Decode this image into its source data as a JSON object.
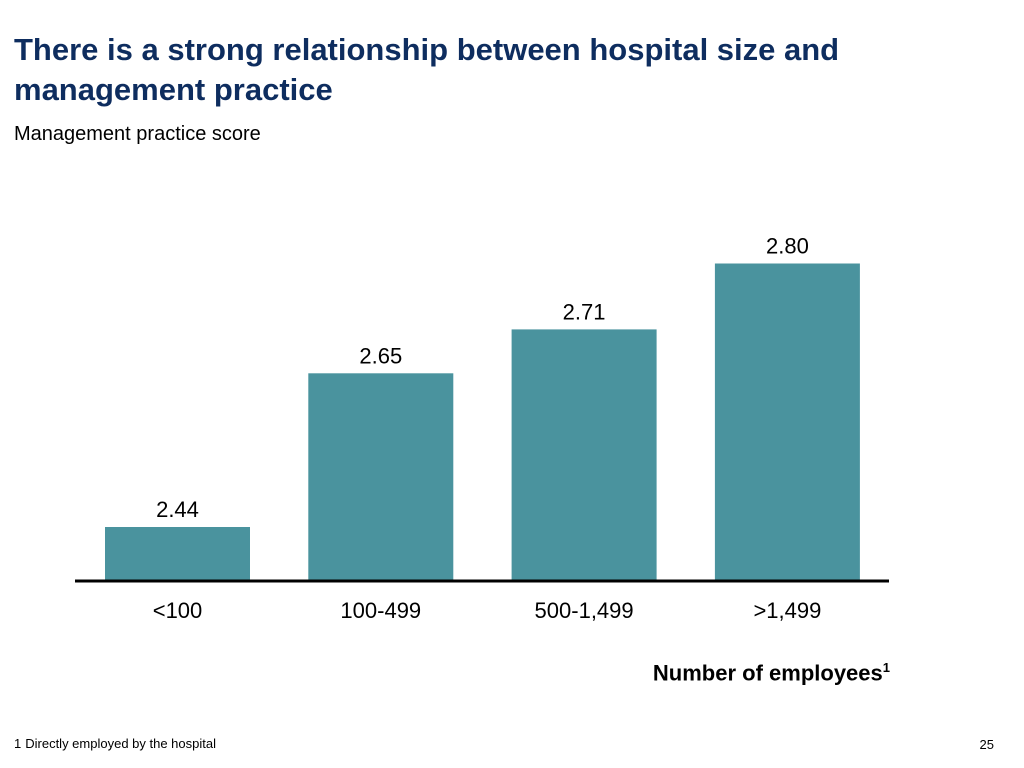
{
  "slide": {
    "title": "There is a strong relationship between hospital size and management practice",
    "subtitle": "Management practice score",
    "footnote_mark": "1",
    "footnote_text": "Directly employed by the hospital",
    "page_number": "25"
  },
  "colors": {
    "bar": "#4a939e",
    "title": "#0e2d5f",
    "axis": "#000000"
  },
  "chart_data": {
    "type": "bar",
    "title": "There is a strong relationship between hospital size and management practice",
    "ylabel": "Management practice score",
    "xlabel": "Number of employees",
    "xlabel_footnote_mark": "1",
    "categories": [
      "<100",
      "100-499",
      "500-1,499",
      ">1,499"
    ],
    "values": [
      2.44,
      2.65,
      2.71,
      2.8
    ],
    "data_labels": [
      "2.44",
      "2.65",
      "2.71",
      "2.80"
    ],
    "grid": false,
    "legend": "none"
  }
}
